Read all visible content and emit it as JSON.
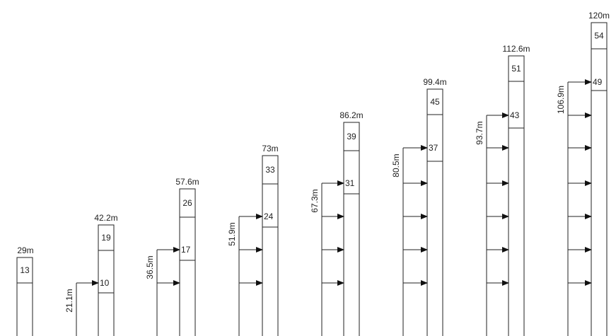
{
  "diagram": {
    "stages": [
      {
        "height_label": "29m",
        "upper_mark": "13",
        "base_mark": "",
        "arrow_label": ""
      },
      {
        "height_label": "42.2m",
        "upper_mark": "19",
        "base_mark": "10",
        "arrow_label": "21.1m"
      },
      {
        "height_label": "57.6m",
        "upper_mark": "26",
        "base_mark": "17",
        "arrow_label": "36.5m"
      },
      {
        "height_label": "73m",
        "upper_mark": "33",
        "base_mark": "24",
        "arrow_label": "51.9m"
      },
      {
        "height_label": "86.2m",
        "upper_mark": "39",
        "base_mark": "31",
        "arrow_label": "67.3m"
      },
      {
        "height_label": "99.4m",
        "upper_mark": "45",
        "base_mark": "37",
        "arrow_label": "80.5m"
      },
      {
        "height_label": "112.6m",
        "upper_mark": "51",
        "base_mark": "43",
        "arrow_label": "93.7m"
      },
      {
        "height_label": "120m",
        "upper_mark": "54",
        "base_mark": "49",
        "arrow_label": "106.9m"
      }
    ]
  }
}
